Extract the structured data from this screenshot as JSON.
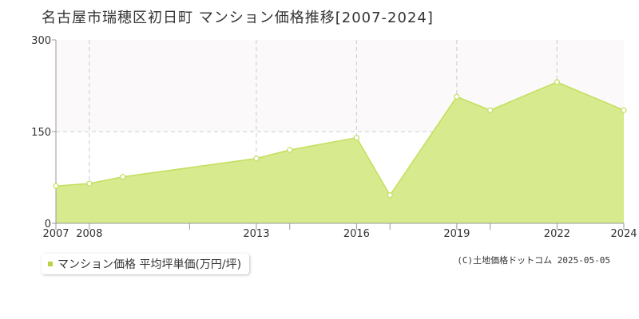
{
  "title": "名古屋市瑞穂区初日町 マンション価格推移[2007-2024]",
  "legend_label": "マンション価格 平均坪単価(万円/坪)",
  "credit": "(C)土地価格ドットコム 2025-05-05",
  "colors": {
    "fill": "#d7ea8e",
    "line": "#c2df5c",
    "marker_stroke": "#c2df5c",
    "marker_fill": "#ffffff",
    "grid": "#cccccc",
    "axis": "#999999",
    "legend_swatch": "#b5d640",
    "plot_bg_upper": "#fbf9f9"
  },
  "chart_data": {
    "type": "area",
    "x": [
      2007,
      2008,
      2009,
      2013,
      2014,
      2016,
      2017,
      2019,
      2020,
      2022,
      2024
    ],
    "values": [
      61,
      65,
      76,
      106,
      120,
      140,
      46,
      207,
      185,
      231,
      185
    ],
    "ylim": [
      0,
      300
    ],
    "xlim": [
      2007,
      2024
    ],
    "yticks": [
      "0",
      "150",
      "300"
    ],
    "xtick_labels": [
      {
        "x": 2007,
        "label": "2007"
      },
      {
        "x": 2008,
        "label": "2008"
      },
      {
        "x": 2013,
        "label": "2013"
      },
      {
        "x": 2016,
        "label": "2016"
      },
      {
        "x": 2019,
        "label": "2019"
      },
      {
        "x": 2022,
        "label": "2022"
      },
      {
        "x": 2024,
        "label": "2024"
      }
    ],
    "vgrid_x": [
      2008,
      2013,
      2016,
      2019,
      2022
    ],
    "minor_ticks_x": [
      2011,
      2014,
      2017,
      2020
    ],
    "grid": true
  }
}
